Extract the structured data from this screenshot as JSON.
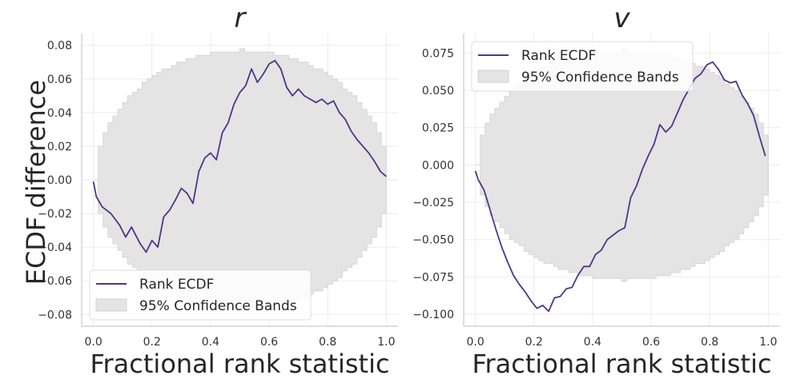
{
  "chart_data": [
    {
      "type": "line",
      "title": "r",
      "xlabel": "Fractional rank statistic",
      "ylabel": "ECDF difference",
      "xlim": [
        -0.04,
        1.04
      ],
      "ylim": [
        -0.087,
        0.087
      ],
      "xticks": [
        "0.0",
        "0.2",
        "0.4",
        "0.6",
        "0.8",
        "1.0"
      ],
      "xtick_values": [
        0.0,
        0.2,
        0.4,
        0.6,
        0.8,
        1.0
      ],
      "yticks": [
        "0.08",
        "0.06",
        "0.04",
        "0.02",
        "0.00",
        "−0.02",
        "−0.04",
        "−0.06",
        "−0.08"
      ],
      "ytick_values": [
        0.08,
        0.06,
        0.04,
        0.02,
        0.0,
        -0.02,
        -0.04,
        -0.06,
        -0.08
      ],
      "grid": true,
      "legend_position": "lower-left",
      "legend": [
        "Rank ECDF",
        "95% Confidence Bands"
      ],
      "line_color": "#4f3588",
      "band_color": "#e4e4e4",
      "band_half_width_peak": 0.077,
      "series": [
        {
          "name": "Rank ECDF",
          "x": [
            0.0,
            0.01,
            0.03,
            0.06,
            0.09,
            0.11,
            0.13,
            0.16,
            0.18,
            0.2,
            0.22,
            0.24,
            0.26,
            0.28,
            0.3,
            0.32,
            0.34,
            0.36,
            0.38,
            0.4,
            0.42,
            0.44,
            0.46,
            0.48,
            0.5,
            0.52,
            0.54,
            0.56,
            0.58,
            0.6,
            0.62,
            0.64,
            0.66,
            0.68,
            0.7,
            0.72,
            0.74,
            0.76,
            0.78,
            0.8,
            0.82,
            0.84,
            0.86,
            0.88,
            0.9,
            0.92,
            0.94,
            0.96,
            0.98,
            1.0
          ],
          "y": [
            -0.001,
            -0.01,
            -0.016,
            -0.02,
            -0.027,
            -0.034,
            -0.028,
            -0.038,
            -0.043,
            -0.036,
            -0.04,
            -0.022,
            -0.018,
            -0.012,
            -0.005,
            -0.008,
            -0.014,
            0.005,
            0.013,
            0.016,
            0.012,
            0.028,
            0.034,
            0.045,
            0.052,
            0.056,
            0.066,
            0.058,
            0.063,
            0.069,
            0.071,
            0.066,
            0.055,
            0.05,
            0.054,
            0.05,
            0.048,
            0.046,
            0.048,
            0.045,
            0.047,
            0.04,
            0.036,
            0.029,
            0.024,
            0.02,
            0.016,
            0.011,
            0.005,
            0.002
          ]
        }
      ]
    },
    {
      "type": "line",
      "title": "v",
      "xlabel": "Fractional rank statistic",
      "ylabel": "",
      "xlim": [
        -0.04,
        1.04
      ],
      "ylim": [
        -0.108,
        0.088
      ],
      "xticks": [
        "0.0",
        "0.2",
        "0.4",
        "0.6",
        "0.8",
        "1.0"
      ],
      "xtick_values": [
        0.0,
        0.2,
        0.4,
        0.6,
        0.8,
        1.0
      ],
      "yticks": [
        "0.075",
        "0.050",
        "0.025",
        "0.000",
        "−0.025",
        "−0.050",
        "−0.075",
        "−0.100"
      ],
      "ytick_values": [
        0.075,
        0.05,
        0.025,
        0.0,
        -0.025,
        -0.05,
        -0.075,
        -0.1
      ],
      "grid": true,
      "legend_position": "top-left",
      "legend": [
        "Rank ECDF",
        "95% Confidence Bands"
      ],
      "line_color": "#4f3588",
      "band_color": "#e4e4e4",
      "band_half_width_peak": 0.077,
      "series": [
        {
          "name": "Rank ECDF",
          "x": [
            0.0,
            0.01,
            0.03,
            0.05,
            0.07,
            0.09,
            0.11,
            0.13,
            0.15,
            0.17,
            0.19,
            0.21,
            0.23,
            0.25,
            0.27,
            0.29,
            0.31,
            0.33,
            0.35,
            0.37,
            0.39,
            0.41,
            0.43,
            0.45,
            0.47,
            0.49,
            0.51,
            0.53,
            0.55,
            0.57,
            0.59,
            0.61,
            0.63,
            0.65,
            0.67,
            0.69,
            0.71,
            0.73,
            0.75,
            0.77,
            0.79,
            0.81,
            0.83,
            0.85,
            0.87,
            0.89,
            0.91,
            0.93,
            0.95,
            0.97,
            0.99
          ],
          "y": [
            -0.004,
            -0.01,
            -0.017,
            -0.03,
            -0.043,
            -0.055,
            -0.065,
            -0.074,
            -0.08,
            -0.085,
            -0.091,
            -0.096,
            -0.094,
            -0.098,
            -0.089,
            -0.088,
            -0.083,
            -0.082,
            -0.074,
            -0.068,
            -0.068,
            -0.06,
            -0.057,
            -0.05,
            -0.047,
            -0.044,
            -0.042,
            -0.022,
            -0.014,
            -0.003,
            0.006,
            0.014,
            0.027,
            0.022,
            0.026,
            0.035,
            0.044,
            0.051,
            0.058,
            0.061,
            0.067,
            0.069,
            0.064,
            0.057,
            0.055,
            0.056,
            0.047,
            0.041,
            0.033,
            0.019,
            0.006
          ]
        }
      ]
    }
  ]
}
